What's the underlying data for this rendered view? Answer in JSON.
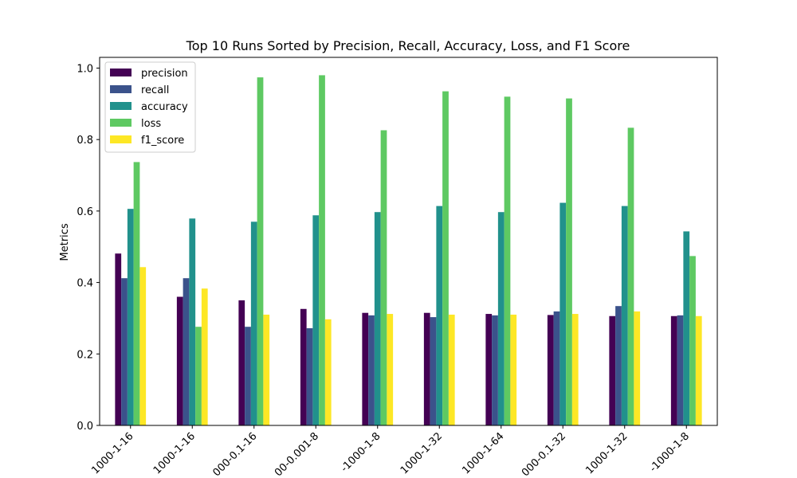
{
  "chart_data": {
    "type": "bar",
    "title": "Top 10 Runs Sorted by Precision, Recall, Accuracy, Loss, and F1 Score",
    "xlabel": "",
    "ylabel": "Metrics",
    "ylim": [
      0,
      1.03
    ],
    "y_ticks": [
      "0.0",
      "0.2",
      "0.4",
      "0.6",
      "0.8",
      "1.0"
    ],
    "legend_position": "top-left",
    "grid": false,
    "categories": [
      "1000-1-16",
      "1000-1-16",
      "000-0.1-16",
      "00-0.001-8",
      "-1000-1-8",
      "1000-1-32",
      "1000-1-64",
      "000-0.1-32",
      "1000-1-32",
      "-1000-1-8"
    ],
    "series": [
      {
        "name": "precision",
        "color": "#440154",
        "values": [
          0.481,
          0.36,
          0.35,
          0.326,
          0.315,
          0.315,
          0.312,
          0.309,
          0.306,
          0.306
        ]
      },
      {
        "name": "recall",
        "color": "#3b528b",
        "values": [
          0.412,
          0.412,
          0.276,
          0.272,
          0.308,
          0.303,
          0.308,
          0.319,
          0.334,
          0.308
        ]
      },
      {
        "name": "accuracy",
        "color": "#21918c",
        "values": [
          0.606,
          0.579,
          0.57,
          0.588,
          0.597,
          0.614,
          0.597,
          0.623,
          0.614,
          0.543
        ]
      },
      {
        "name": "loss",
        "color": "#5ec962",
        "values": [
          0.737,
          0.276,
          0.974,
          0.98,
          0.826,
          0.935,
          0.92,
          0.915,
          0.833,
          0.474
        ]
      },
      {
        "name": "f1_score",
        "color": "#fde725",
        "values": [
          0.443,
          0.383,
          0.31,
          0.297,
          0.312,
          0.31,
          0.31,
          0.312,
          0.319,
          0.306
        ]
      }
    ]
  }
}
